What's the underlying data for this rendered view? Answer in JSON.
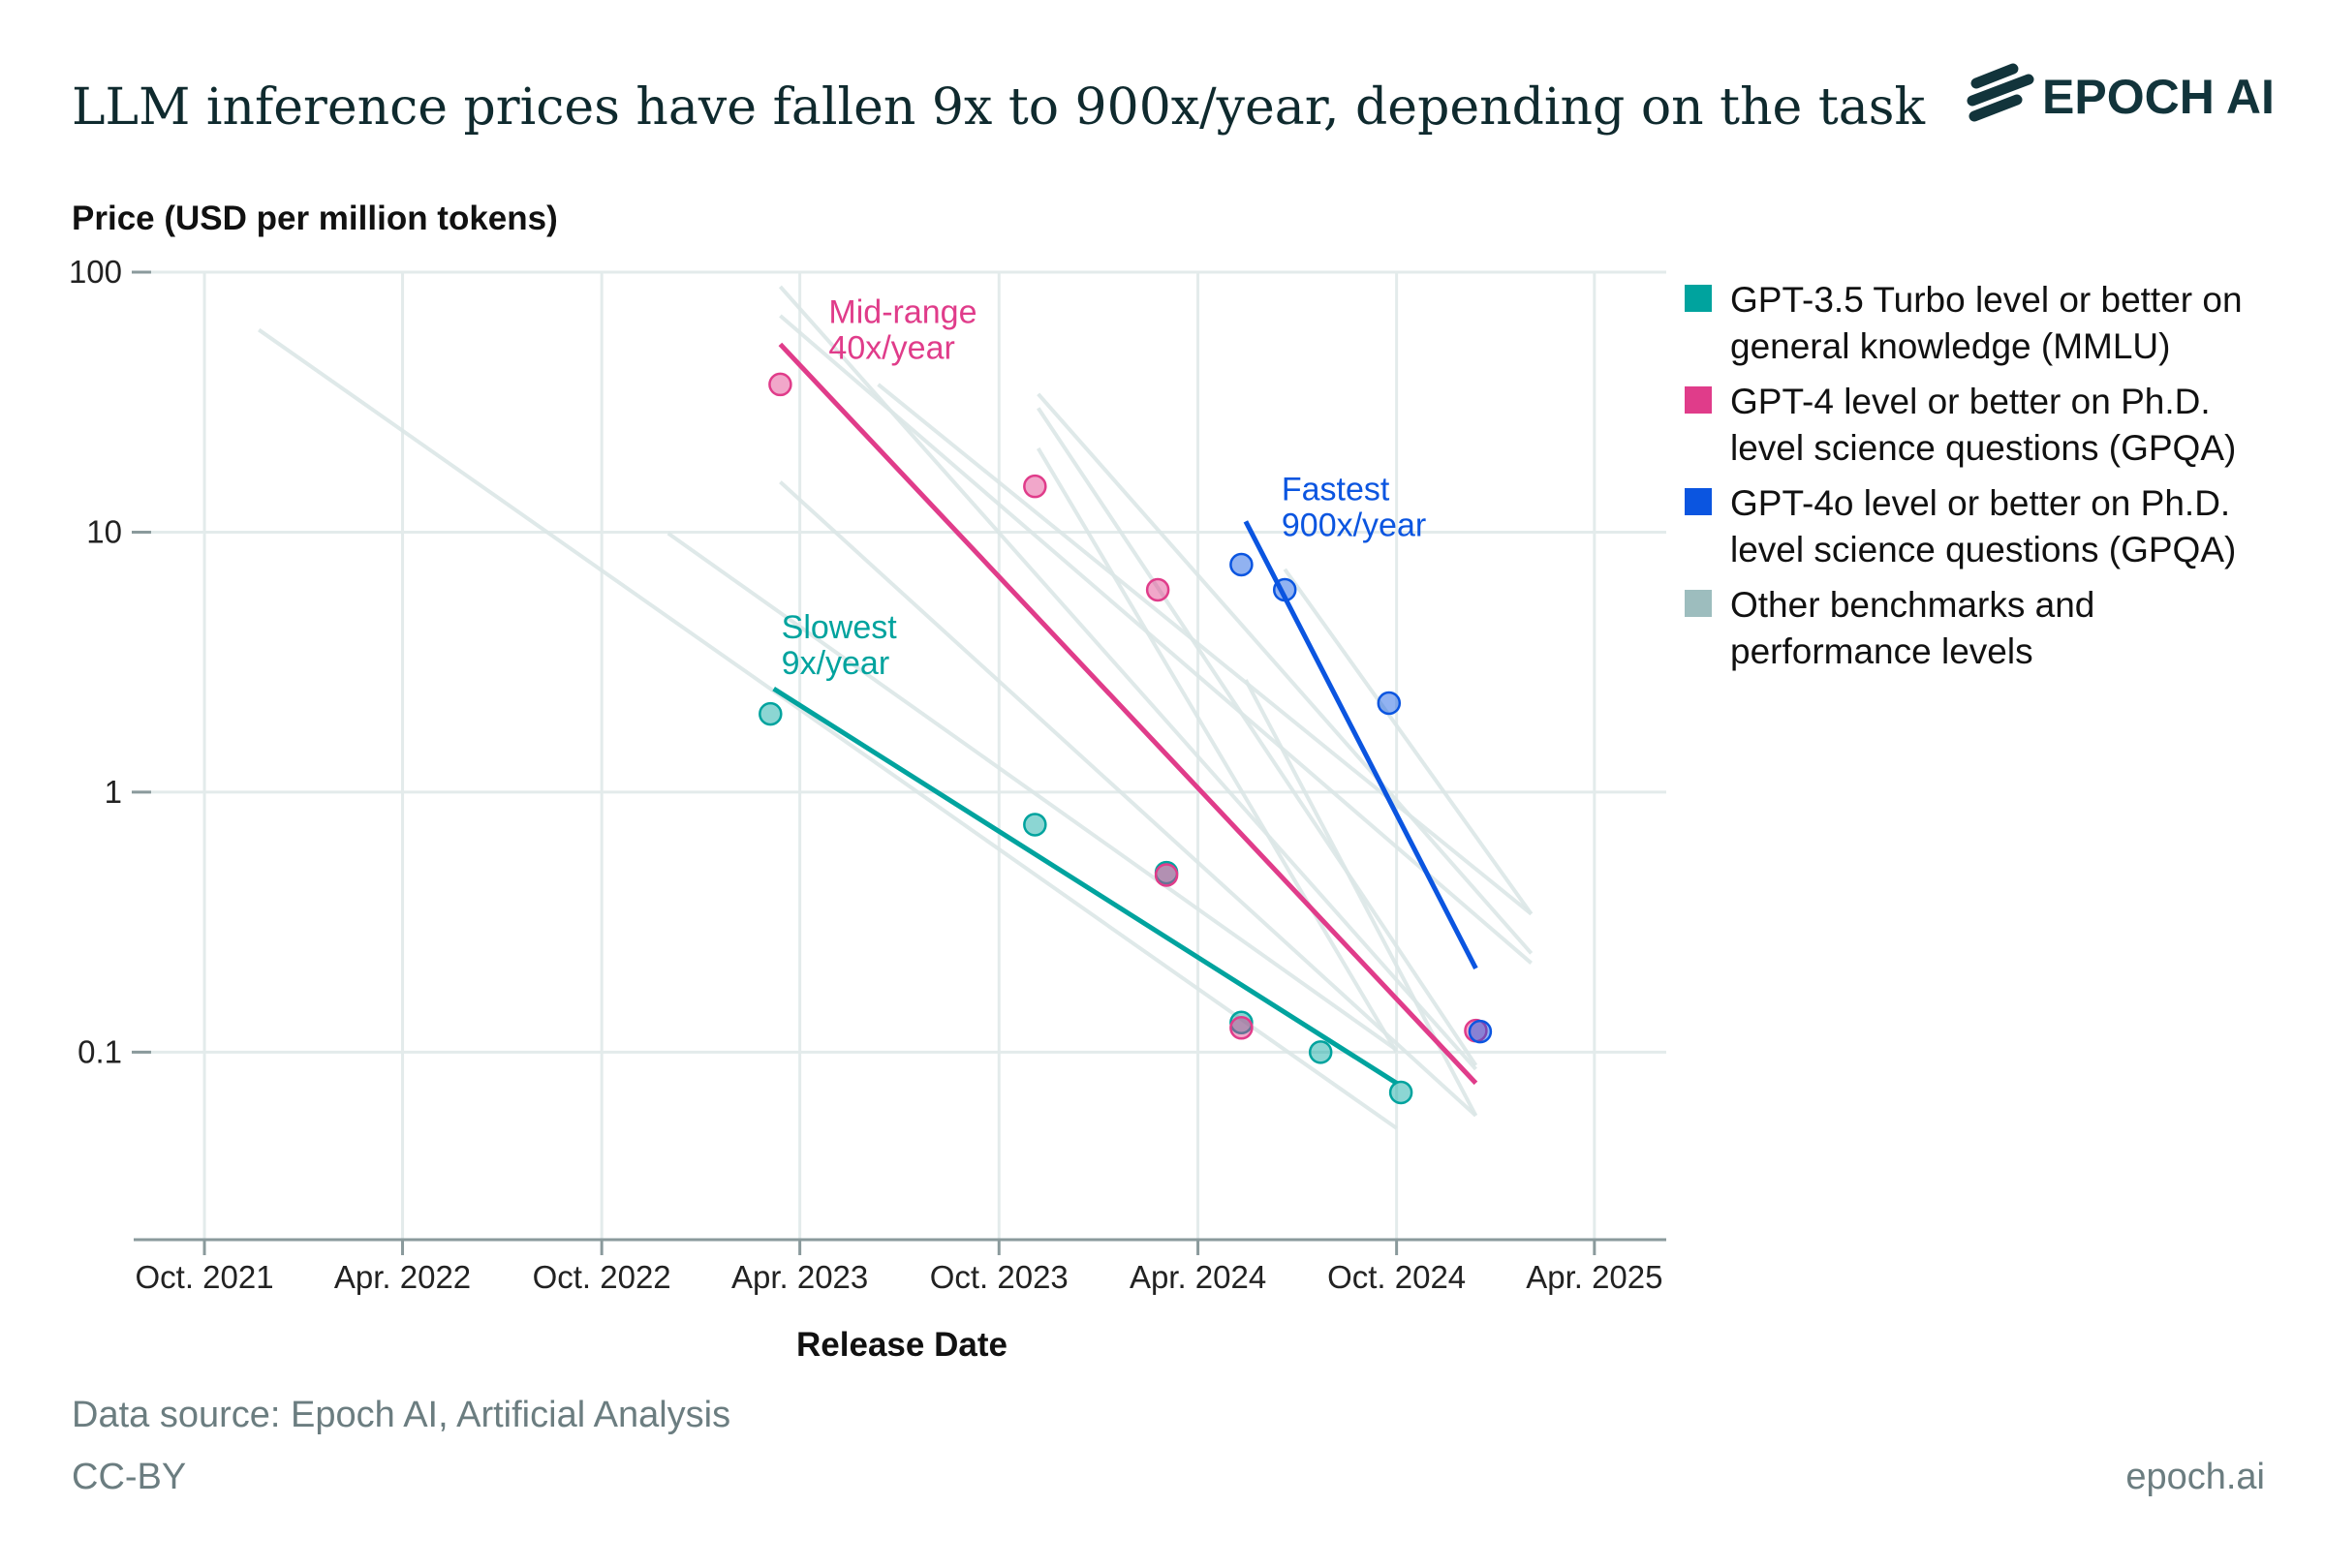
{
  "header": {
    "title": "LLM inference prices have fallen 9x to 900x/year, depending on the task",
    "logo_text": "EPOCH AI"
  },
  "footer": {
    "source": "Data source: Epoch AI, Artificial Analysis",
    "license": "CC-BY",
    "site": "epoch.ai"
  },
  "colors": {
    "teal": "#00a39e",
    "pink": "#e03c8a",
    "blue": "#0b55e0",
    "gray_line": "#dce7e7",
    "gray_legend": "#9dbdbe",
    "grid": "#e3ebeb",
    "axis": "#8a9a9c"
  },
  "chart_data": {
    "type": "scatter",
    "title": "LLM inference prices have fallen 9x to 900x/year, depending on the task",
    "xlabel": "Release Date",
    "ylabel": "Price (USD per million tokens)",
    "yscale": "log",
    "ylim": [
      0.019,
      100
    ],
    "xlim": [
      "2021-07-28",
      "2025-06-06"
    ],
    "grid": true,
    "legend_position": "right",
    "x_ticks": [
      {
        "date": "2021-10-01",
        "label": "Oct. 2021"
      },
      {
        "date": "2022-04-01",
        "label": "Apr. 2022"
      },
      {
        "date": "2022-10-01",
        "label": "Oct. 2022"
      },
      {
        "date": "2023-04-01",
        "label": "Apr. 2023"
      },
      {
        "date": "2023-10-01",
        "label": "Oct. 2023"
      },
      {
        "date": "2024-04-01",
        "label": "Apr. 2024"
      },
      {
        "date": "2024-10-01",
        "label": "Oct. 2024"
      },
      {
        "date": "2025-04-01",
        "label": "Apr. 2025"
      }
    ],
    "y_ticks": [
      {
        "value": 100,
        "label": "100"
      },
      {
        "value": 10,
        "label": "10"
      },
      {
        "value": 1,
        "label": "1"
      },
      {
        "value": 0.1,
        "label": "0.1"
      }
    ],
    "legend": [
      {
        "key": "teal",
        "lines": [
          "GPT-3.5 Turbo level or better on",
          "general knowledge (MMLU)"
        ]
      },
      {
        "key": "pink",
        "lines": [
          "GPT-4 level or better on Ph.D.",
          "level science questions (GPQA)"
        ]
      },
      {
        "key": "blue",
        "lines": [
          "GPT-4o level or better on Ph.D.",
          "level science questions (GPQA)"
        ]
      },
      {
        "key": "gray",
        "lines": [
          "Other benchmarks and",
          "performance levels"
        ]
      }
    ],
    "other_trends": [
      [
        [
          "2021-11-20",
          60
        ],
        [
          "2024-10-01",
          0.051
        ]
      ],
      [
        [
          "2022-12-01",
          9.9
        ],
        [
          "2024-10-01",
          0.102
        ]
      ],
      [
        [
          "2023-03-14",
          15.6
        ],
        [
          "2024-12-13",
          0.057
        ]
      ],
      [
        [
          "2023-03-14",
          88
        ],
        [
          "2024-12-13",
          0.086
        ]
      ],
      [
        [
          "2023-03-14",
          68
        ],
        [
          "2025-02-02",
          0.22
        ]
      ],
      [
        [
          "2023-06-12",
          37
        ],
        [
          "2025-02-02",
          0.34
        ]
      ],
      [
        [
          "2023-11-06",
          34
        ],
        [
          "2025-02-02",
          0.24
        ]
      ],
      [
        [
          "2023-11-06",
          30
        ],
        [
          "2024-12-13",
          0.089
        ]
      ],
      [
        [
          "2023-11-06",
          21
        ],
        [
          "2024-10-01",
          0.1
        ]
      ],
      [
        [
          "2024-05-15",
          2.7
        ],
        [
          "2024-12-13",
          0.057
        ]
      ],
      [
        [
          "2024-06-20",
          7.2
        ],
        [
          "2025-02-02",
          0.34
        ]
      ]
    ],
    "series": [
      {
        "key": "teal",
        "name": "GPT-3.5 Turbo level or better on general knowledge (MMLU)",
        "points": [
          [
            "2023-03-05",
            2.0
          ],
          [
            "2023-11-03",
            0.75
          ],
          [
            "2024-03-03",
            0.49
          ],
          [
            "2024-05-11",
            0.13
          ],
          [
            "2024-07-23",
            0.1
          ],
          [
            "2024-10-05",
            0.07
          ]
        ],
        "trend": [
          [
            "2023-03-08",
            2.5
          ],
          [
            "2024-10-01",
            0.076
          ]
        ],
        "annotation": [
          "Slowest",
          "9x/year"
        ]
      },
      {
        "key": "pink",
        "name": "GPT-4 level or better on Ph.D. level science questions (GPQA)",
        "points": [
          [
            "2023-03-14",
            37
          ],
          [
            "2023-11-03",
            15
          ],
          [
            "2024-02-24",
            6.0
          ],
          [
            "2024-03-03",
            0.48
          ],
          [
            "2024-05-11",
            0.124
          ],
          [
            "2024-12-13",
            0.121
          ]
        ],
        "trend": [
          [
            "2023-03-14",
            52.8
          ],
          [
            "2024-12-13",
            0.076
          ]
        ],
        "annotation": [
          "Mid-range",
          "40x/year"
        ]
      },
      {
        "key": "blue",
        "name": "GPT-4o level or better on Ph.D. level science questions (GPQA)",
        "points": [
          [
            "2024-05-11",
            7.5
          ],
          [
            "2024-06-20",
            6.0
          ],
          [
            "2024-09-24",
            2.2
          ],
          [
            "2024-12-17",
            0.12
          ]
        ],
        "trend": [
          [
            "2024-05-15",
            11
          ],
          [
            "2024-12-13",
            0.21
          ]
        ],
        "annotation": [
          "Fastest",
          "900x/year"
        ]
      }
    ]
  }
}
